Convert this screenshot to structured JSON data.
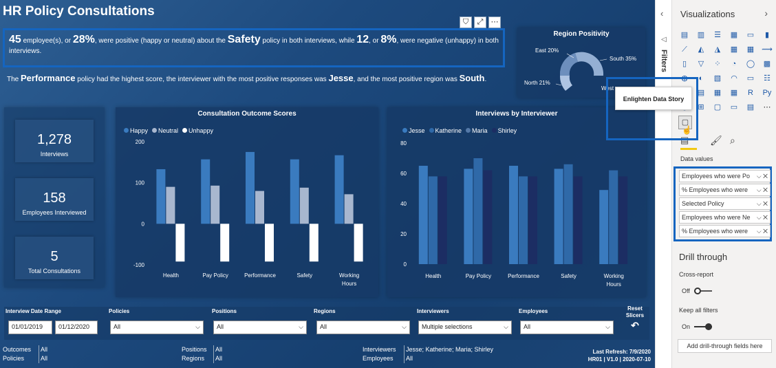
{
  "report": {
    "title": "HR Policy Consultations",
    "story1": {
      "n1": "45",
      "t1": " employee(s), or ",
      "p1": "28%",
      "t2": ", were positive (happy or neutral) about the ",
      "policy": "Safety",
      "t3": " policy in both interviews, while ",
      "n2": "12",
      "t4": ", or ",
      "p2": "8%",
      "t5": ", were negative (unhappy) in both interviews."
    },
    "story2": {
      "t1": "The ",
      "policy": "Performance",
      "t2": " policy had the highest score, the interviewer with the most positive responses was ",
      "interviewer": "Jesse",
      "t3": ", and the most positive region was ",
      "region": "South",
      "t4": "."
    },
    "region_positivity": {
      "title": "Region Positivity",
      "labels": [
        "East 20%",
        "South 35%",
        "North 21%",
        "West"
      ]
    },
    "kpis": [
      {
        "value": "1,278",
        "label": "Interviews"
      },
      {
        "value": "158",
        "label": "Employees Interviewed"
      },
      {
        "value": "5",
        "label": "Total Consultations"
      }
    ],
    "slicers": [
      {
        "label": "Interview Date Range",
        "from": "01/01/2019",
        "to": "01/12/2020"
      },
      {
        "label": "Policies",
        "value": "All"
      },
      {
        "label": "Positions",
        "value": "All"
      },
      {
        "label": "Regions",
        "value": "All"
      },
      {
        "label": "Interviewers",
        "value": "Multiple selections"
      },
      {
        "label": "Employees",
        "value": "All"
      }
    ],
    "reset": {
      "label1": "Reset",
      "label2": "Slicers"
    },
    "footer": {
      "outcomes_k": "Outcomes",
      "outcomes_v": "All",
      "policies_k": "Policies",
      "policies_v": "All",
      "positions_k": "Positions",
      "positions_v": "All",
      "regions_k": "Regions",
      "regions_v": "All",
      "interviewers_k": "Interviewers",
      "interviewers_v": "Jesse; Katherine; Maria; Shirley",
      "employees_k": "Employees",
      "employees_v": "All",
      "refresh": "Last Refresh: 7/9/2020",
      "version": "HR01 | V1.0 | 2020-07-10"
    }
  },
  "colors": {
    "happy": "#3a7bbf",
    "neutral": "#a8b7cf",
    "unhappy": "#ffffff",
    "jesse": "#3a7bbf",
    "katherine": "#2f69a8",
    "maria": "#5479a8",
    "shirley": "#1c2d63"
  },
  "chart_data": [
    {
      "type": "bar",
      "title": "Consultation Outcome Scores",
      "categories": [
        "Health",
        "Pay Policy",
        "Performance",
        "Safety",
        "Working Hours"
      ],
      "ylim": [
        -100,
        200
      ],
      "yticks": [
        "200",
        "100",
        "0",
        "-100"
      ],
      "series": [
        {
          "name": "Happy",
          "values": [
            133,
            157,
            175,
            157,
            167
          ]
        },
        {
          "name": "Neutral",
          "values": [
            90,
            93,
            80,
            88,
            72
          ]
        },
        {
          "name": "Unhappy",
          "values": [
            -92,
            -92,
            -92,
            -92,
            -92
          ]
        }
      ]
    },
    {
      "type": "bar",
      "title": "Interviews by Interviewer",
      "categories": [
        "Health",
        "Pay Policy",
        "Performance",
        "Safety",
        "Working Hours"
      ],
      "ylim": [
        0,
        80
      ],
      "yticks": [
        "80",
        "60",
        "40",
        "20",
        "0"
      ],
      "series": [
        {
          "name": "Jesse",
          "values": [
            65,
            63,
            65,
            63,
            49
          ]
        },
        {
          "name": "Katherine",
          "values": [
            58,
            70,
            58,
            66,
            62
          ]
        },
        {
          "name": "Maria",
          "values": [
            0,
            0,
            0,
            0,
            0
          ]
        },
        {
          "name": "Shirley",
          "values": [
            58,
            62,
            58,
            58,
            58
          ]
        }
      ]
    }
  ],
  "pane": {
    "filters": "Filters",
    "visualizations": "Visualizations",
    "tooltip": "Enlighten Data Story",
    "data_values": "Data values",
    "fields": [
      "Employees who were Po",
      "% Employees who were",
      "Selected Policy",
      "Employees who were Ne",
      "% Employees who were"
    ],
    "drill": "Drill through",
    "cross_report": "Cross-report",
    "off": "Off",
    "keep_filters": "Keep all filters",
    "on": "On",
    "add_drill": "Add drill-through fields here",
    "viz_icons": [
      "stacked-bar-icon",
      "stacked-column-icon",
      "clustered-bar-icon",
      "clustered-column-icon",
      "100-bar-icon",
      "100-column-icon",
      "line-icon",
      "area-icon",
      "stacked-area-icon",
      "line-column-icon",
      "line-column2-icon",
      "ribbon-icon",
      "waterfall-icon",
      "funnel-icon",
      "scatter-icon",
      "pie-icon",
      "donut-icon",
      "treemap-icon",
      "map-icon",
      "filled-map-icon",
      "shape-map-icon",
      "gauge-icon",
      "card-icon",
      "multirow-card-icon",
      "kpi-icon",
      "slicer-icon",
      "table-icon",
      "matrix-icon",
      "r-visual-icon",
      "python-visual-icon",
      "key-influencers-icon",
      "decomposition-icon",
      "qna-icon",
      "narrative-icon",
      "paginated-icon",
      "more-icon"
    ],
    "viz_glyphs": [
      "▤",
      "▥",
      "☰",
      "▦",
      "▭",
      "▮",
      "⟋",
      "◭",
      "◮",
      "▦",
      "▦",
      "⟿",
      "▯",
      "▽",
      "⁘",
      "◔",
      "◯",
      "▩",
      "◍",
      "◐",
      "▧",
      "◠",
      "▭",
      "☷",
      "△",
      "▤",
      "▦",
      "▦",
      "R",
      "Py",
      "◉",
      "⊞",
      "▢",
      "▭",
      "▤",
      "⋯"
    ]
  }
}
